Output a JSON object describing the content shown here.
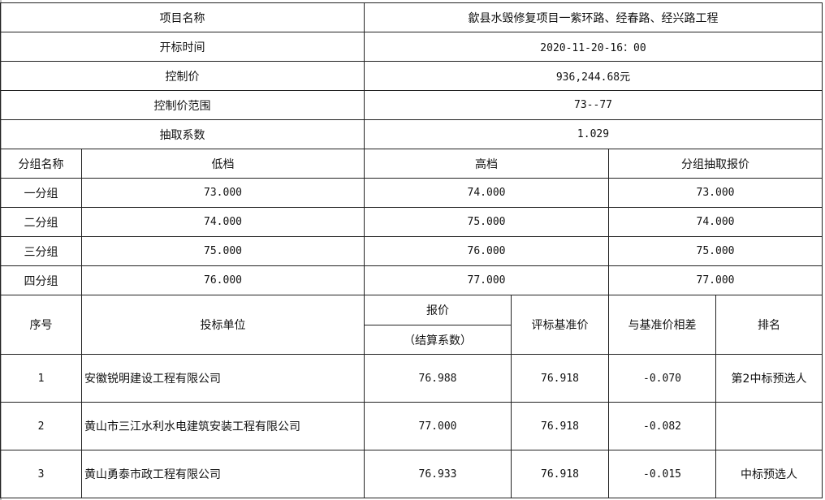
{
  "info": [
    {
      "label": "项目名称",
      "value": "歙县水毁修复项目一紫环路、经春路、经兴路工程"
    },
    {
      "label": "开标时间",
      "value": "2020-11-20-16：00"
    },
    {
      "label": "控制价",
      "value": "936,244.68元"
    },
    {
      "label": "控制价范围",
      "value": "73--77"
    },
    {
      "label": "抽取系数",
      "value": "1.029"
    }
  ],
  "groups": {
    "headers": [
      "分组名称",
      "低档",
      "高档",
      "分组抽取报价"
    ],
    "rows": [
      [
        "一分组",
        "73.000",
        "74.000",
        "73.000"
      ],
      [
        "二分组",
        "74.000",
        "75.000",
        "74.000"
      ],
      [
        "三分组",
        "75.000",
        "76.000",
        "75.000"
      ],
      [
        "四分组",
        "76.000",
        "77.000",
        "77.000"
      ]
    ]
  },
  "bids": {
    "headers": {
      "no": "序号",
      "company": "投标单位",
      "price": "报价",
      "price_sub": "（结算系数）",
      "base": "评标基准价",
      "diff": "与基准价相差",
      "rank": "排名"
    },
    "rows": [
      {
        "no": "1",
        "company": "安徽锐明建设工程有限公司",
        "price": "76.988",
        "base": "76.918",
        "diff": "-0.070",
        "rank": "第2中标预选人"
      },
      {
        "no": "2",
        "company": "黄山市三江水利水电建筑安装工程有限公司",
        "price": "77.000",
        "base": "76.918",
        "diff": "-0.082",
        "rank": ""
      },
      {
        "no": "3",
        "company": "黄山勇泰市政工程有限公司",
        "price": "76.933",
        "base": "76.918",
        "diff": "-0.015",
        "rank": "中标预选人"
      }
    ]
  }
}
